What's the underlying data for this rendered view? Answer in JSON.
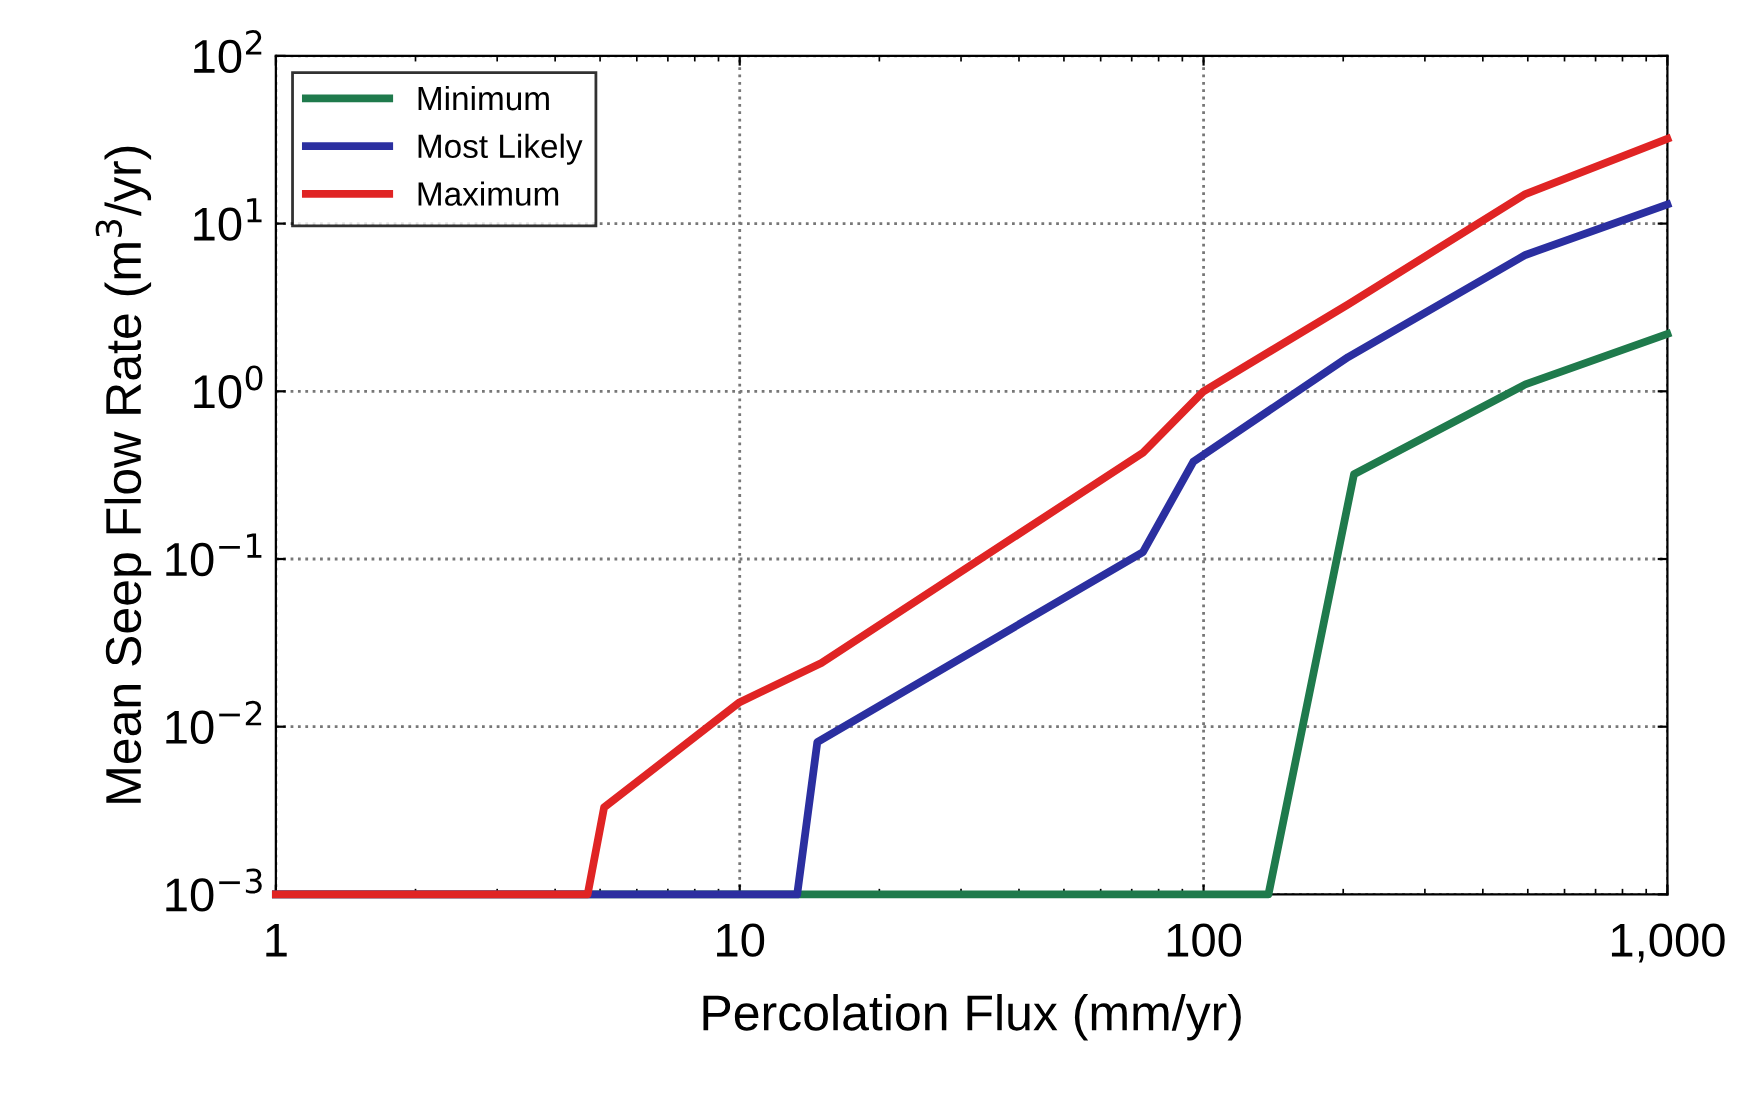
{
  "chart_data": {
    "type": "line",
    "xlabel": "Percolation Flux (mm/yr)",
    "ylabel": "Mean Seep Flow Rate (m$^{3}$/yr)",
    "log": "xy",
    "xlim": [
      1,
      1000
    ],
    "ylim": [
      0.001,
      100
    ],
    "xticks": [
      1,
      10,
      100,
      {
        "value": 1000,
        "label": "1,000"
      }
    ],
    "yticks": [
      {
        "value": 0.001,
        "label": "10$^{−3}$"
      },
      {
        "value": 0.01,
        "label": "10$^{−2}$"
      },
      {
        "value": 0.1,
        "label": "10$^{−1}$"
      },
      {
        "value": 1,
        "label": "10$^{0}$"
      },
      {
        "value": 10,
        "label": "10$^{1}$"
      },
      {
        "value": 100,
        "label": "10$^{2}$"
      }
    ],
    "grid": true,
    "legend": "top left",
    "marker": "none",
    "line_style": "solid",
    "series": [
      {
        "name": "Minimum",
        "color": "#1f7a4c",
        "x": [
          1,
          138,
          211,
          494,
          1000
        ],
        "values": [
          0.001,
          0.001,
          0.32,
          1.1,
          2.2
        ]
      },
      {
        "name": "Most Likely",
        "color": "#2b2fa0",
        "x": [
          1,
          13.3,
          14.7,
          74,
          95,
          205,
          494,
          1000
        ],
        "values": [
          0.001,
          0.001,
          0.0081,
          0.11,
          0.38,
          1.6,
          6.5,
          13
        ]
      },
      {
        "name": "Maximum",
        "color": "#e02424",
        "x": [
          1,
          4.7,
          5.1,
          10,
          15,
          74,
          100,
          205,
          494,
          1000
        ],
        "values": [
          0.001,
          0.001,
          0.0033,
          0.014,
          0.024,
          0.43,
          1.0,
          3.3,
          15,
          32
        ]
      }
    ]
  }
}
